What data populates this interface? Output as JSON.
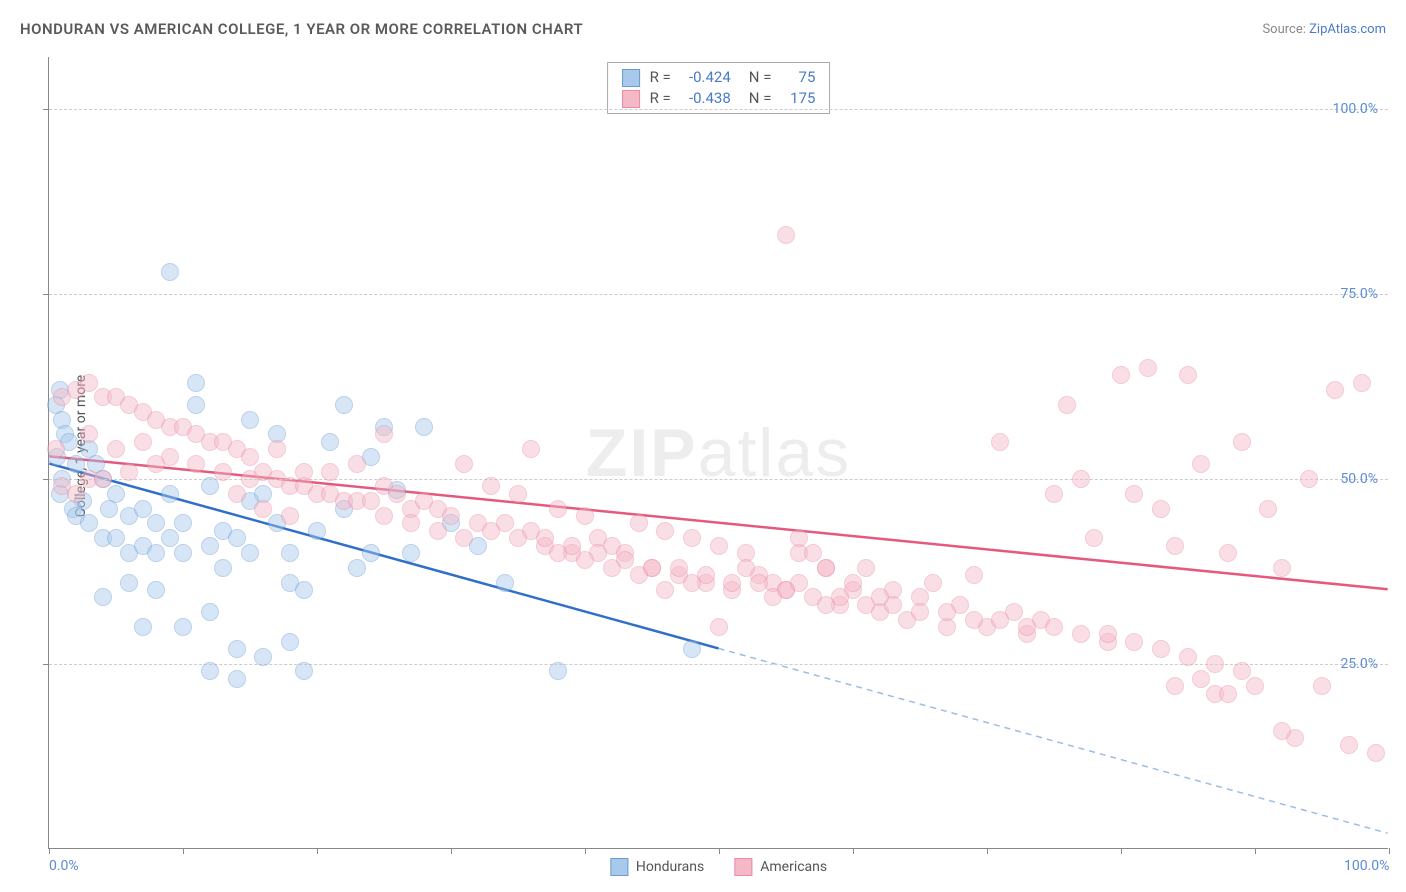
{
  "title": "HONDURAN VS AMERICAN COLLEGE, 1 YEAR OR MORE CORRELATION CHART",
  "source_label": "Source:",
  "source_link": "ZipAtlas.com",
  "y_axis_title": "College, 1 year or more",
  "watermark_bold": "ZIP",
  "watermark_rest": "atlas",
  "chart": {
    "type": "scatter",
    "xlim": [
      0,
      100
    ],
    "ylim": [
      0,
      107
    ],
    "x_ticks": [
      0,
      10,
      20,
      30,
      40,
      50,
      60,
      70,
      80,
      90,
      100
    ],
    "y_gridlines": [
      0,
      25,
      50,
      75,
      100
    ],
    "y_gridline_labels": [
      "",
      "25.0%",
      "50.0%",
      "75.0%",
      "100.0%"
    ],
    "x_tick_labels": {
      "0": "0.0%",
      "100": "100.0%"
    },
    "background_color": "#ffffff",
    "grid_color": "#cccccc",
    "axis_color": "#888888",
    "tick_label_color": "#5b8dd6",
    "point_radius": 9,
    "point_opacity": 0.45
  },
  "series": [
    {
      "name": "Hondurans",
      "fill_color": "#a8c8ec",
      "stroke_color": "#6b9bd1",
      "trend_color": "#2f6fc9",
      "trend_width": 2.5,
      "trend_dash_color": "#9bbde4",
      "R": "-0.424",
      "N": "75",
      "trend": {
        "x1": 0,
        "y1": 52,
        "x2": 50,
        "y2": 27,
        "x2_ext": 100,
        "y2_ext": 2
      },
      "points": [
        [
          0.8,
          62
        ],
        [
          0.5,
          60
        ],
        [
          1,
          58
        ],
        [
          1.2,
          56
        ],
        [
          1.5,
          55
        ],
        [
          0.6,
          53
        ],
        [
          2,
          52
        ],
        [
          1,
          50
        ],
        [
          0.8,
          48
        ],
        [
          2.5,
          47
        ],
        [
          1.8,
          46
        ],
        [
          3,
          54
        ],
        [
          3.5,
          52
        ],
        [
          4,
          50
        ],
        [
          2,
          45
        ],
        [
          3,
          44
        ],
        [
          4,
          42
        ],
        [
          5,
          48
        ],
        [
          4.5,
          46
        ],
        [
          6,
          45
        ],
        [
          5,
          42
        ],
        [
          6,
          40
        ],
        [
          7,
          41
        ],
        [
          7,
          46
        ],
        [
          8,
          44
        ],
        [
          8,
          40
        ],
        [
          9,
          48
        ],
        [
          9,
          42
        ],
        [
          10,
          44
        ],
        [
          10,
          40
        ],
        [
          11,
          63
        ],
        [
          11,
          60
        ],
        [
          12,
          49
        ],
        [
          12,
          41
        ],
        [
          13,
          43
        ],
        [
          13,
          38
        ],
        [
          14,
          42
        ],
        [
          15,
          58
        ],
        [
          15,
          40
        ],
        [
          16,
          48
        ],
        [
          17,
          56
        ],
        [
          17,
          44
        ],
        [
          18,
          40
        ],
        [
          18,
          36
        ],
        [
          19,
          35
        ],
        [
          20,
          43
        ],
        [
          21,
          55
        ],
        [
          22,
          46
        ],
        [
          23,
          38
        ],
        [
          24,
          53
        ],
        [
          25,
          57
        ],
        [
          26,
          48.5
        ],
        [
          27,
          40
        ],
        [
          8,
          35
        ],
        [
          10,
          30
        ],
        [
          12,
          32
        ],
        [
          14,
          27
        ],
        [
          16,
          26
        ],
        [
          18,
          28
        ],
        [
          19,
          24
        ],
        [
          15,
          47
        ],
        [
          4,
          34
        ],
        [
          6,
          36
        ],
        [
          7,
          30
        ],
        [
          12,
          24
        ],
        [
          14,
          23
        ],
        [
          9,
          78
        ],
        [
          22,
          60
        ],
        [
          28,
          57
        ],
        [
          24,
          40
        ],
        [
          30,
          44
        ],
        [
          32,
          41
        ],
        [
          34,
          36
        ],
        [
          38,
          24
        ],
        [
          48,
          27
        ]
      ]
    },
    {
      "name": "Americans",
      "fill_color": "#f4b8c6",
      "stroke_color": "#e88ba3",
      "trend_color": "#e35a7e",
      "trend_width": 2.5,
      "R": "-0.438",
      "N": "175",
      "trend": {
        "x1": 0,
        "y1": 53,
        "x2": 100,
        "y2": 35
      },
      "points": [
        [
          1,
          61
        ],
        [
          2,
          62
        ],
        [
          3,
          63
        ],
        [
          4,
          61
        ],
        [
          5,
          61
        ],
        [
          6,
          60
        ],
        [
          7,
          59
        ],
        [
          8,
          58
        ],
        [
          9,
          57
        ],
        [
          10,
          57
        ],
        [
          11,
          56
        ],
        [
          12,
          55
        ],
        [
          13,
          55
        ],
        [
          14,
          54
        ],
        [
          15,
          53
        ],
        [
          3,
          56
        ],
        [
          5,
          54
        ],
        [
          7,
          55
        ],
        [
          9,
          53
        ],
        [
          11,
          52
        ],
        [
          13,
          51
        ],
        [
          15,
          50
        ],
        [
          16,
          51
        ],
        [
          17,
          50
        ],
        [
          18,
          49
        ],
        [
          19,
          49
        ],
        [
          20,
          48
        ],
        [
          21,
          48
        ],
        [
          22,
          47
        ],
        [
          23,
          47
        ],
        [
          24,
          47
        ],
        [
          25,
          49
        ],
        [
          26,
          48
        ],
        [
          27,
          46
        ],
        [
          28,
          47
        ],
        [
          29,
          46
        ],
        [
          30,
          45
        ],
        [
          31,
          52
        ],
        [
          32,
          44
        ],
        [
          33,
          49
        ],
        [
          34,
          44
        ],
        [
          35,
          48
        ],
        [
          36,
          43
        ],
        [
          37,
          41
        ],
        [
          38,
          46
        ],
        [
          39,
          40
        ],
        [
          40,
          45
        ],
        [
          41,
          42
        ],
        [
          42,
          41
        ],
        [
          43,
          40
        ],
        [
          44,
          44
        ],
        [
          45,
          38
        ],
        [
          46,
          43
        ],
        [
          47,
          37
        ],
        [
          48,
          42
        ],
        [
          49,
          36
        ],
        [
          50,
          41
        ],
        [
          51,
          35
        ],
        [
          52,
          40
        ],
        [
          53,
          37
        ],
        [
          54,
          36
        ],
        [
          55,
          35
        ],
        [
          56,
          40
        ],
        [
          57,
          34
        ],
        [
          58,
          38
        ],
        [
          59,
          33
        ],
        [
          60,
          35
        ],
        [
          61,
          38
        ],
        [
          62,
          32
        ],
        [
          63,
          35
        ],
        [
          64,
          31
        ],
        [
          65,
          34
        ],
        [
          66,
          36
        ],
        [
          67,
          30
        ],
        [
          68,
          33
        ],
        [
          69,
          37
        ],
        [
          70,
          30
        ],
        [
          71,
          55
        ],
        [
          72,
          32
        ],
        [
          73,
          29
        ],
        [
          74,
          31
        ],
        [
          75,
          48
        ],
        [
          76,
          60
        ],
        [
          77,
          50
        ],
        [
          78,
          42
        ],
        [
          79,
          28
        ],
        [
          80,
          64
        ],
        [
          81,
          48
        ],
        [
          82,
          65
        ],
        [
          83,
          46
        ],
        [
          84,
          41
        ],
        [
          85,
          64
        ],
        [
          86,
          52
        ],
        [
          87,
          21
        ],
        [
          88,
          40
        ],
        [
          89,
          55
        ],
        [
          90,
          22
        ],
        [
          91,
          46
        ],
        [
          92,
          38
        ],
        [
          93,
          15
        ],
        [
          94,
          50
        ],
        [
          95,
          22
        ],
        [
          96,
          62
        ],
        [
          97,
          14
        ],
        [
          98,
          63
        ],
        [
          99,
          13
        ],
        [
          84,
          22
        ],
        [
          86,
          23
        ],
        [
          88,
          21
        ],
        [
          92,
          16
        ],
        [
          1,
          49
        ],
        [
          2,
          48
        ],
        [
          3,
          50
        ],
        [
          0.5,
          54
        ],
        [
          4,
          50
        ],
        [
          6,
          51
        ],
        [
          8,
          52
        ],
        [
          14,
          48
        ],
        [
          16,
          46
        ],
        [
          18,
          45
        ],
        [
          17,
          54
        ],
        [
          19,
          51
        ],
        [
          21,
          51
        ],
        [
          23,
          52
        ],
        [
          25,
          45
        ],
        [
          27,
          44
        ],
        [
          29,
          43
        ],
        [
          31,
          42
        ],
        [
          33,
          43
        ],
        [
          35,
          42
        ],
        [
          37,
          42
        ],
        [
          39,
          41
        ],
        [
          41,
          40
        ],
        [
          43,
          39
        ],
        [
          45,
          38
        ],
        [
          47,
          38
        ],
        [
          49,
          37
        ],
        [
          51,
          36
        ],
        [
          53,
          36
        ],
        [
          55,
          35
        ],
        [
          57,
          40
        ],
        [
          59,
          34
        ],
        [
          61,
          33
        ],
        [
          63,
          33
        ],
        [
          65,
          32
        ],
        [
          67,
          32
        ],
        [
          69,
          31
        ],
        [
          71,
          31
        ],
        [
          73,
          30
        ],
        [
          75,
          30
        ],
        [
          77,
          29
        ],
        [
          79,
          29
        ],
        [
          81,
          28
        ],
        [
          83,
          27
        ],
        [
          85,
          26
        ],
        [
          87,
          25
        ],
        [
          89,
          24
        ],
        [
          58,
          38
        ],
        [
          60,
          36
        ],
        [
          62,
          34
        ],
        [
          25,
          56
        ],
        [
          36,
          54
        ],
        [
          55,
          83
        ],
        [
          56,
          42
        ],
        [
          58,
          33
        ],
        [
          52,
          38
        ],
        [
          54,
          34
        ],
        [
          56,
          36
        ],
        [
          46,
          35
        ],
        [
          48,
          36
        ],
        [
          44,
          37
        ],
        [
          42,
          38
        ],
        [
          40,
          39
        ],
        [
          38,
          40
        ],
        [
          50,
          30
        ]
      ]
    }
  ],
  "stats_labels": {
    "R": "R =",
    "N": "N ="
  },
  "legend_title": ""
}
